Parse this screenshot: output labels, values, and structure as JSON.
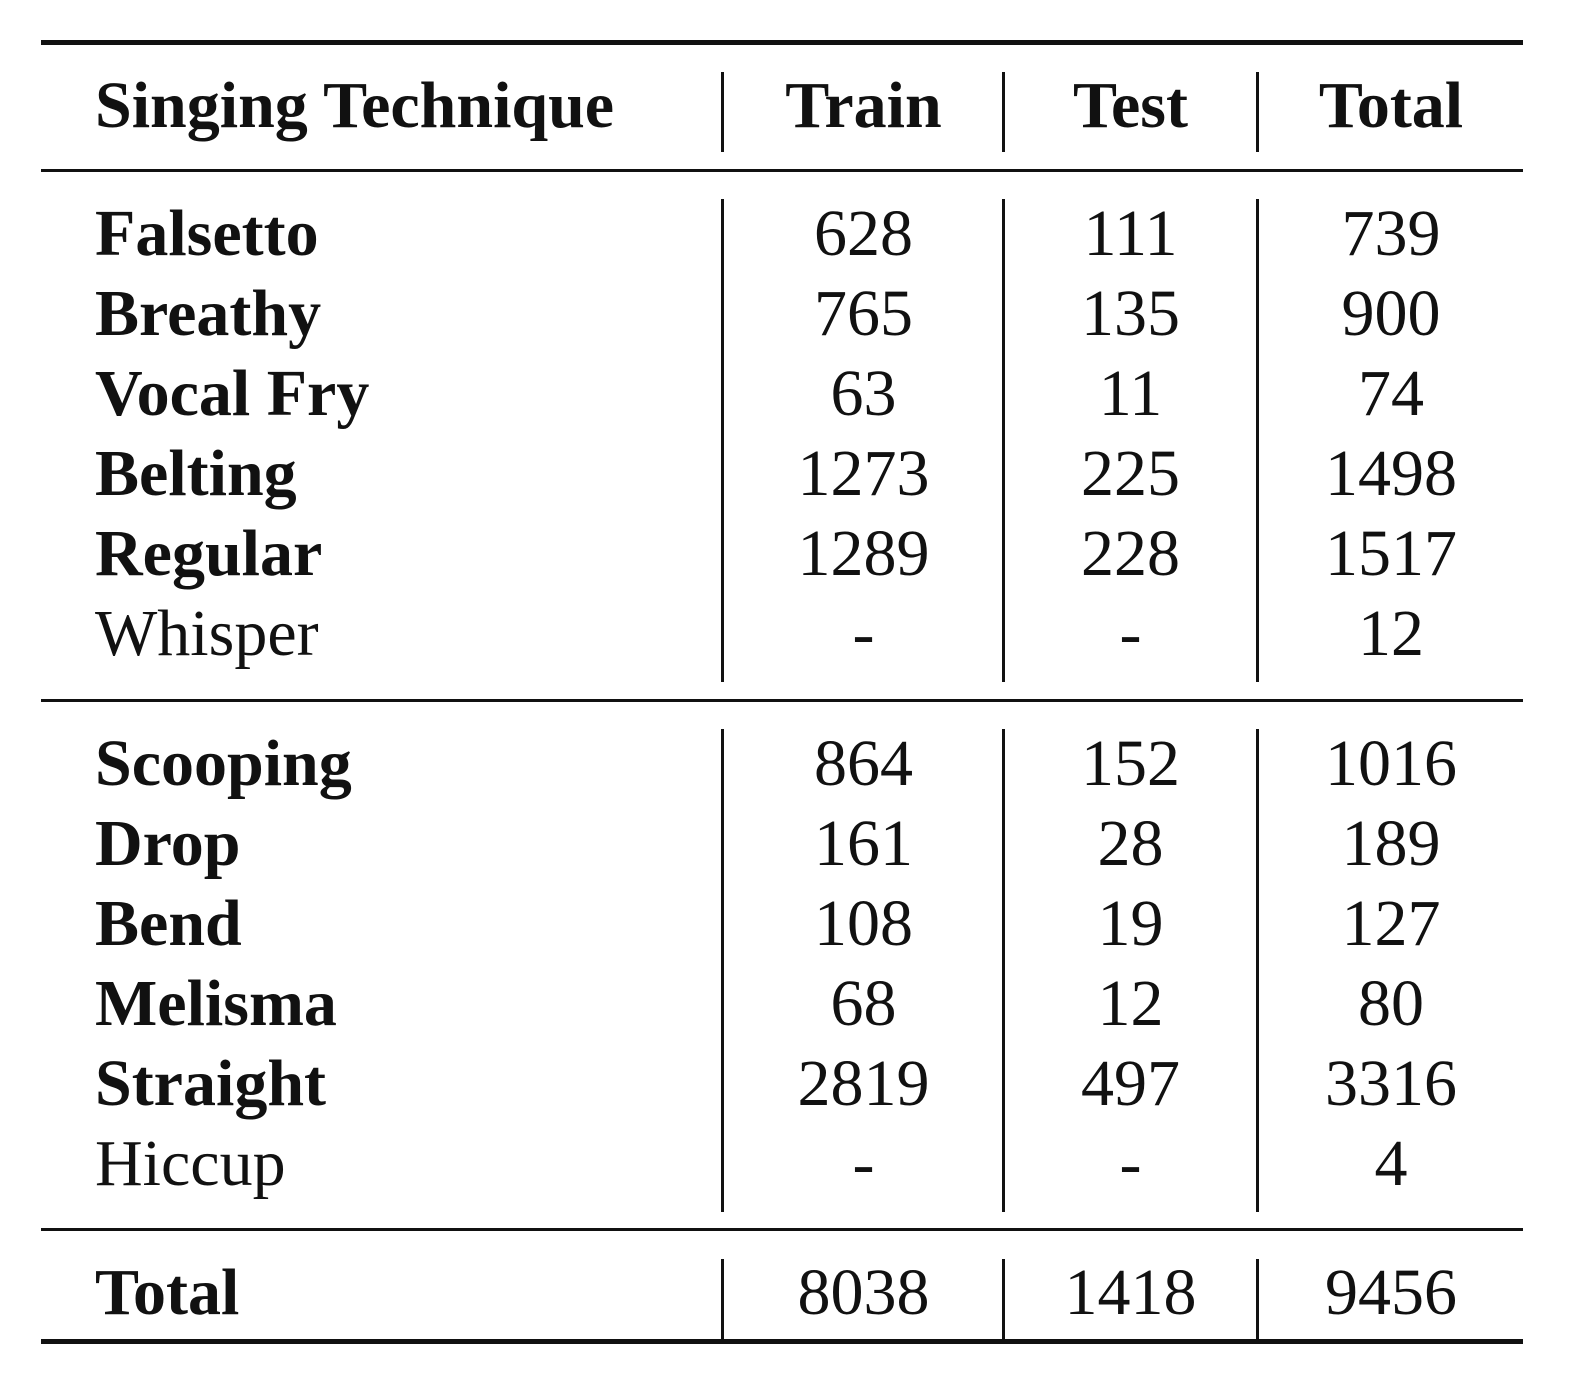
{
  "header": {
    "technique": "Singing Technique",
    "train": "Train",
    "test": "Test",
    "total": "Total"
  },
  "group1": [
    {
      "name": "Falsetto",
      "train": "628",
      "test": "111",
      "total": "739",
      "bold": true
    },
    {
      "name": "Breathy",
      "train": "765",
      "test": "135",
      "total": "900",
      "bold": true
    },
    {
      "name": "Vocal Fry",
      "train": "63",
      "test": "11",
      "total": "74",
      "bold": true
    },
    {
      "name": "Belting",
      "train": "1273",
      "test": "225",
      "total": "1498",
      "bold": true
    },
    {
      "name": "Regular",
      "train": "1289",
      "test": "228",
      "total": "1517",
      "bold": true
    },
    {
      "name": "Whisper",
      "train": "-",
      "test": "-",
      "total": "12",
      "bold": false
    }
  ],
  "group2": [
    {
      "name": "Scooping",
      "train": "864",
      "test": "152",
      "total": "1016",
      "bold": true
    },
    {
      "name": "Drop",
      "train": "161",
      "test": "28",
      "total": "189",
      "bold": true
    },
    {
      "name": "Bend",
      "train": "108",
      "test": "19",
      "total": "127",
      "bold": true
    },
    {
      "name": "Melisma",
      "train": "68",
      "test": "12",
      "total": "80",
      "bold": true
    },
    {
      "name": "Straight",
      "train": "2819",
      "test": "497",
      "total": "3316",
      "bold": true
    },
    {
      "name": "Hiccup",
      "train": "-",
      "test": "-",
      "total": "4",
      "bold": false
    }
  ],
  "footer": {
    "label": "Total",
    "train": "8038",
    "test": "1418",
    "total": "9456"
  }
}
